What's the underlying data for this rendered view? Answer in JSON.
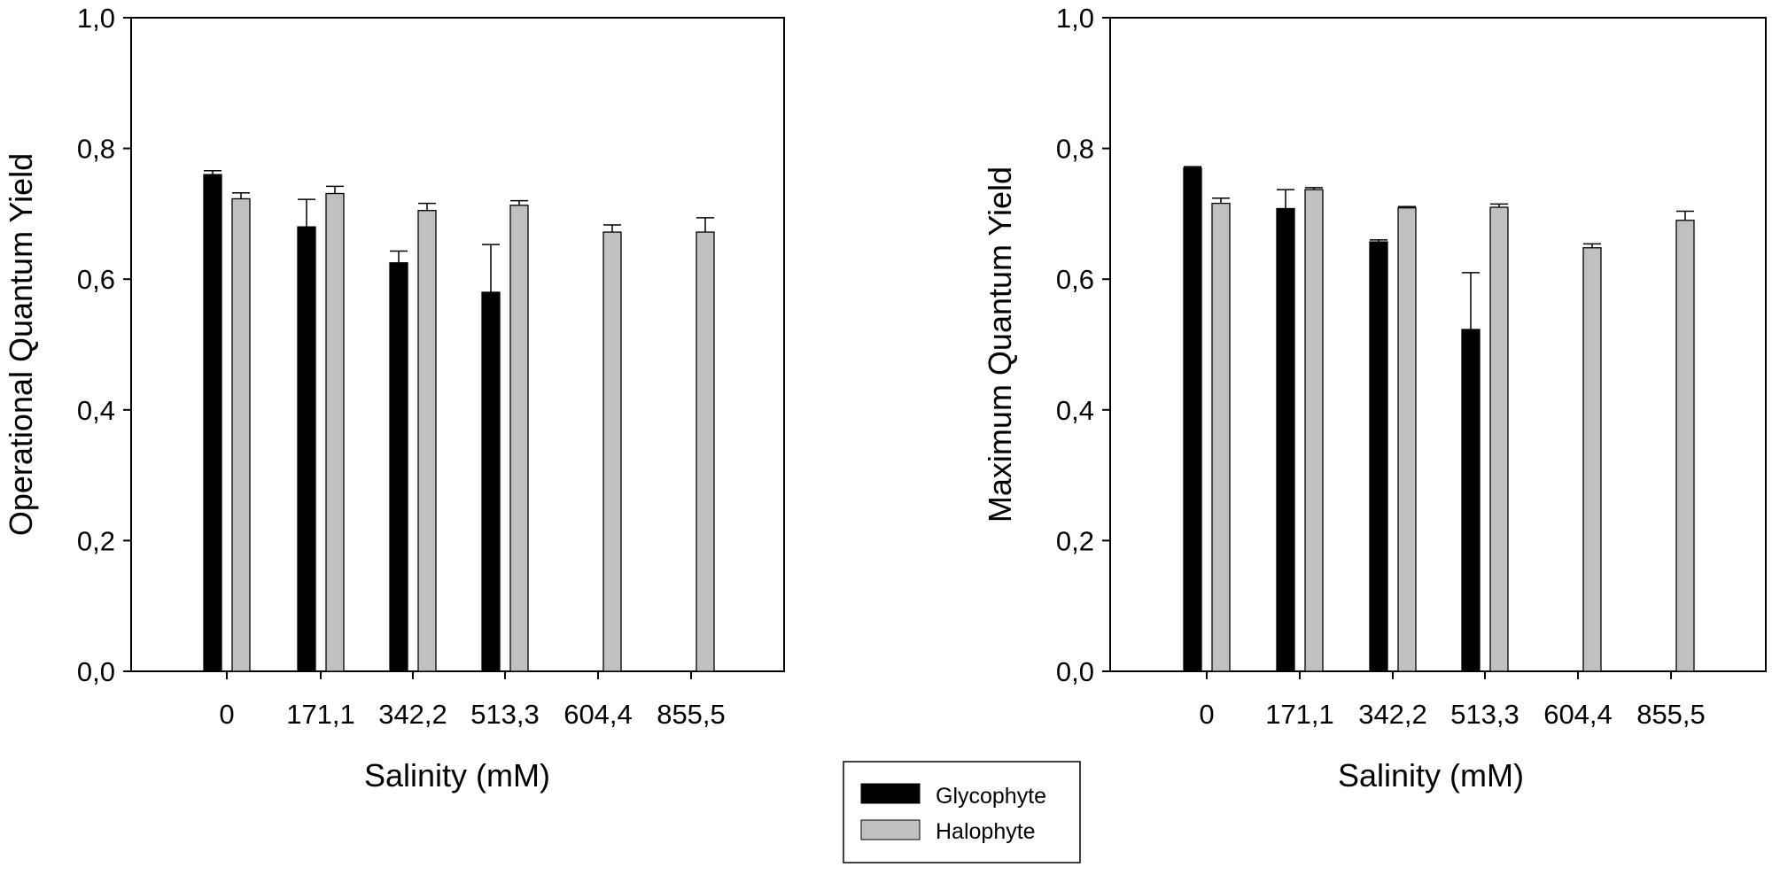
{
  "chart_data": [
    {
      "type": "bar",
      "title": "",
      "xlabel": "Salinity (mM)",
      "ylabel": "Operational Quantum Yield",
      "ylim": [
        0,
        1.0
      ],
      "yticks": [
        "0,0",
        "0,2",
        "0,4",
        "0,6",
        "0,8",
        "1,0"
      ],
      "ytick_values": [
        0,
        0.2,
        0.4,
        0.6,
        0.8,
        1.0
      ],
      "categories": [
        "0",
        "171,1",
        "342,2",
        "513,3",
        "604,4",
        "855,5"
      ],
      "series": [
        {
          "name": "Glycophyte",
          "color": "#000000",
          "values": [
            0.76,
            0.68,
            0.625,
            0.58,
            null,
            null
          ],
          "errors": [
            0.006,
            0.042,
            0.018,
            0.073,
            null,
            null
          ]
        },
        {
          "name": "Halophyte",
          "color": "#c0c0c0",
          "values": [
            0.723,
            0.731,
            0.705,
            0.713,
            0.672,
            0.672
          ],
          "errors": [
            0.009,
            0.011,
            0.011,
            0.007,
            0.011,
            0.022
          ]
        }
      ]
    },
    {
      "type": "bar",
      "title": "",
      "xlabel": "Salinity (mM)",
      "ylabel": "Maximum Quantum Yield",
      "ylim": [
        0,
        1.0
      ],
      "yticks": [
        "0,0",
        "0,2",
        "0,4",
        "0,6",
        "0,8",
        "1,0"
      ],
      "ytick_values": [
        0,
        0.2,
        0.4,
        0.6,
        0.8,
        1.0
      ],
      "categories": [
        "0",
        "171,1",
        "342,2",
        "513,3",
        "604,4",
        "855,5"
      ],
      "series": [
        {
          "name": "Glycophyte",
          "color": "#000000",
          "values": [
            0.77,
            0.708,
            0.657,
            0.523,
            null,
            null
          ],
          "errors": [
            0.002,
            0.029,
            0.003,
            0.087,
            null,
            null
          ]
        },
        {
          "name": "Halophyte",
          "color": "#c0c0c0",
          "values": [
            0.716,
            0.737,
            0.709,
            0.71,
            0.648,
            0.69
          ],
          "errors": [
            0.008,
            0.003,
            0.002,
            0.005,
            0.006,
            0.014
          ]
        }
      ]
    }
  ],
  "legend": {
    "items": [
      {
        "label": "Glycophyte",
        "color": "#000000"
      },
      {
        "label": "Halophyte",
        "color": "#c0c0c0"
      }
    ]
  }
}
